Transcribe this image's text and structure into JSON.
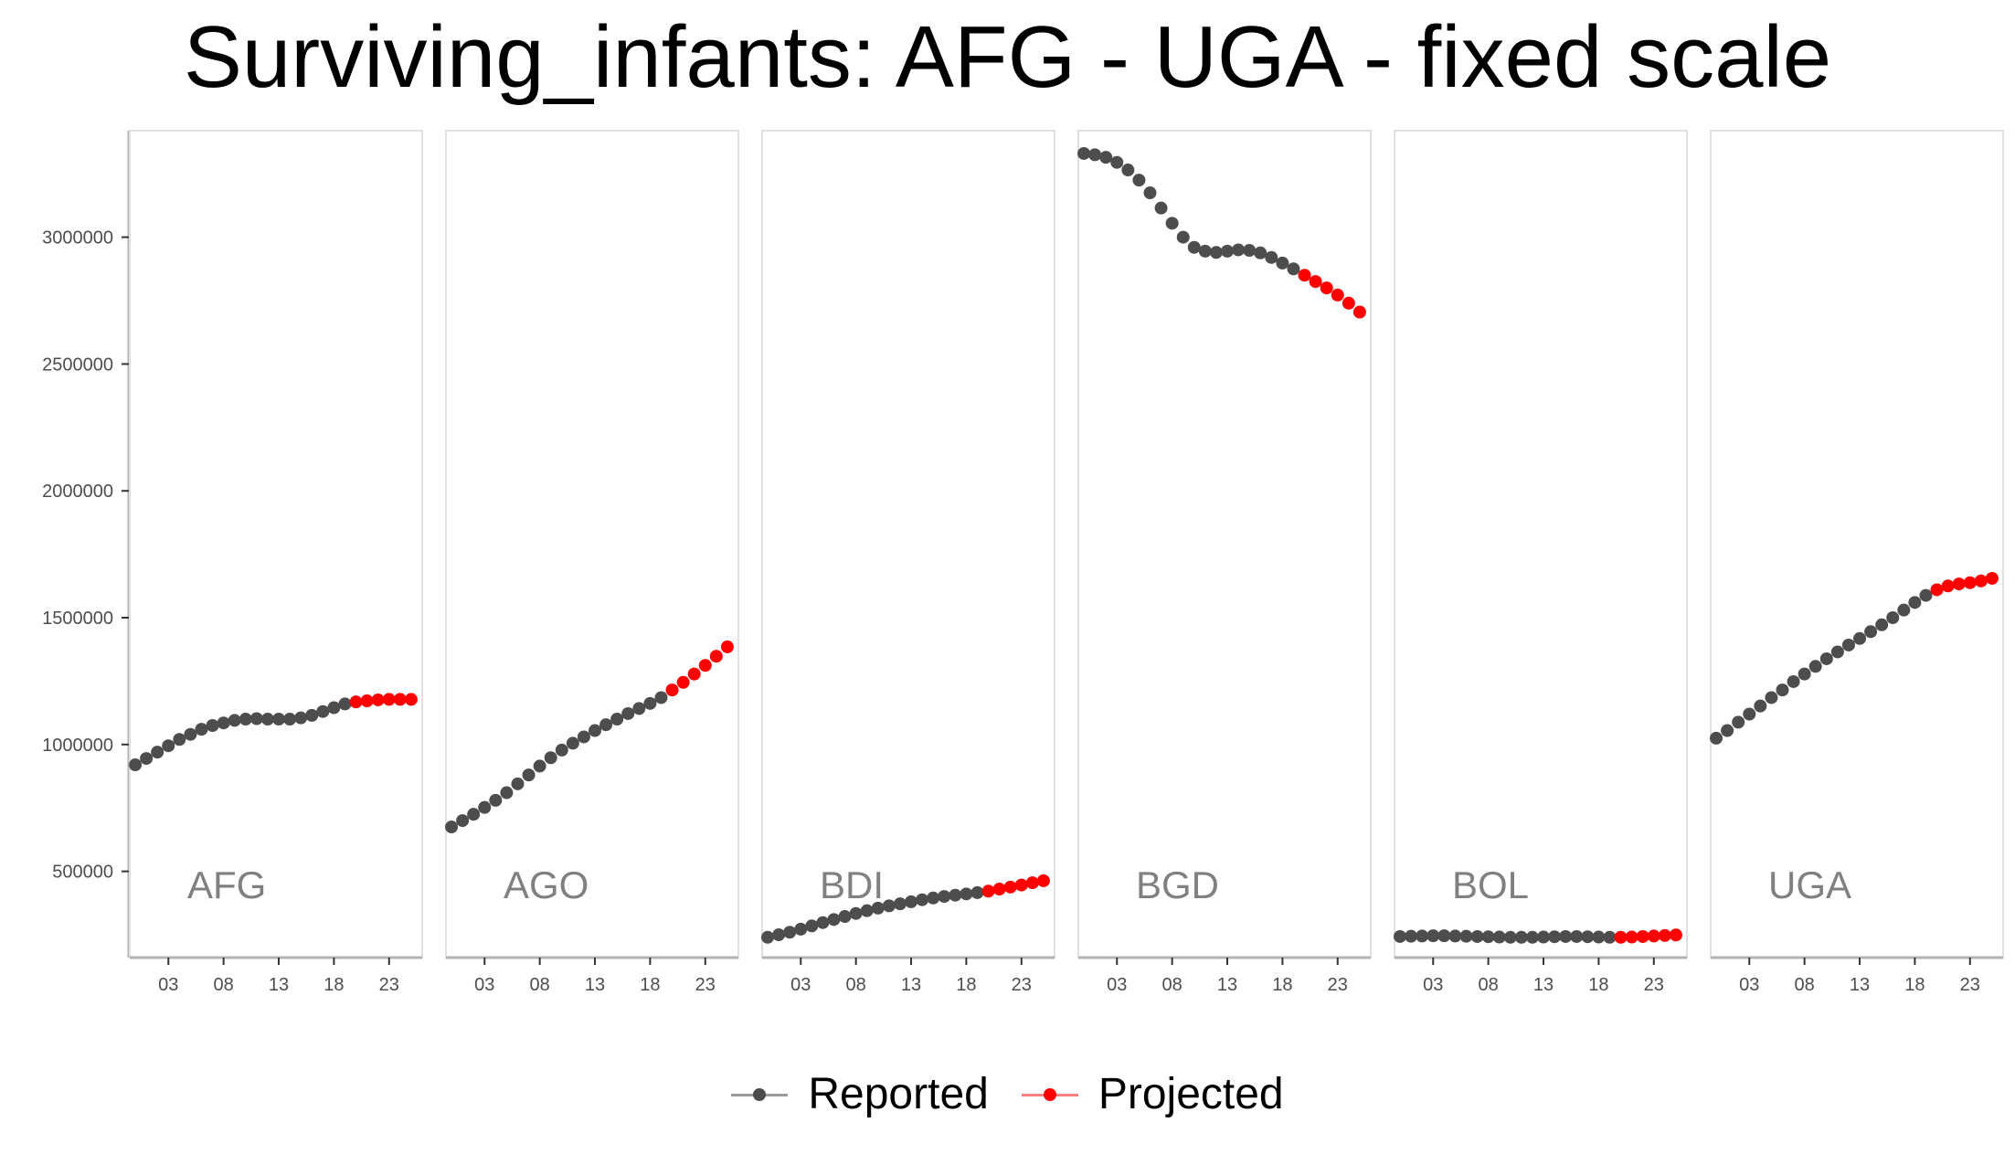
{
  "chart_data": {
    "type": "scatter",
    "title": "Surviving_infants: AFG - UGA - fixed scale",
    "xlabel": "",
    "ylabel": "",
    "ylim": [
      160000,
      3420000
    ],
    "xlim": [
      -0.5,
      26
    ],
    "y_ticks": [
      500000,
      1000000,
      1500000,
      2000000,
      2500000,
      3000000
    ],
    "y_tick_labels": [
      "500000",
      "1000000",
      "1500000",
      "2000000",
      "2500000",
      "3000000"
    ],
    "x_ticks": [
      3,
      8,
      13,
      18,
      23
    ],
    "x_tick_labels": [
      "03",
      "08",
      "13",
      "18",
      "23"
    ],
    "grid": false,
    "legend_position": "bottom",
    "legend": [
      {
        "label": "Reported",
        "color": "#4d4d4d"
      },
      {
        "label": "Projected",
        "color": "#ff0000"
      }
    ],
    "x": [
      0,
      1,
      2,
      3,
      4,
      5,
      6,
      7,
      8,
      9,
      10,
      11,
      12,
      13,
      14,
      15,
      16,
      17,
      18,
      19,
      20,
      21,
      22,
      23,
      24,
      25
    ],
    "projected_from_index": 20,
    "panels": [
      {
        "label": "AFG",
        "values": [
          920000,
          945000,
          970000,
          995000,
          1020000,
          1040000,
          1060000,
          1075000,
          1085000,
          1095000,
          1100000,
          1102000,
          1100000,
          1100000,
          1100000,
          1105000,
          1115000,
          1130000,
          1145000,
          1160000,
          1168000,
          1172000,
          1176000,
          1178000,
          1178000,
          1178000
        ]
      },
      {
        "label": "AGO",
        "values": [
          675000,
          700000,
          725000,
          752000,
          780000,
          810000,
          845000,
          880000,
          915000,
          948000,
          978000,
          1005000,
          1030000,
          1055000,
          1078000,
          1100000,
          1122000,
          1142000,
          1162000,
          1185000,
          1215000,
          1245000,
          1278000,
          1312000,
          1348000,
          1385000
        ]
      },
      {
        "label": "BDI",
        "values": [
          240000,
          250000,
          260000,
          272000,
          285000,
          298000,
          310000,
          322000,
          334000,
          345000,
          355000,
          364000,
          372000,
          380000,
          388000,
          395000,
          401000,
          406000,
          411000,
          416000,
          422000,
          430000,
          438000,
          446000,
          455000,
          463000
        ]
      },
      {
        "label": "BGD",
        "values": [
          3330000,
          3325000,
          3315000,
          3295000,
          3265000,
          3225000,
          3175000,
          3115000,
          3055000,
          3000000,
          2960000,
          2945000,
          2940000,
          2945000,
          2950000,
          2948000,
          2938000,
          2920000,
          2898000,
          2875000,
          2850000,
          2825000,
          2800000,
          2772000,
          2740000,
          2705000
        ]
      },
      {
        "label": "BOL",
        "values": [
          243000,
          244000,
          245000,
          246000,
          246000,
          245000,
          244000,
          243000,
          242000,
          241000,
          240000,
          240000,
          240000,
          241000,
          242000,
          243000,
          243000,
          242000,
          241000,
          240000,
          240000,
          241000,
          243000,
          245000,
          247000,
          249000
        ]
      },
      {
        "label": "UGA",
        "values": [
          1025000,
          1055000,
          1088000,
          1120000,
          1152000,
          1185000,
          1215000,
          1248000,
          1278000,
          1308000,
          1338000,
          1365000,
          1392000,
          1418000,
          1445000,
          1472000,
          1500000,
          1530000,
          1560000,
          1588000,
          1610000,
          1625000,
          1633000,
          1638000,
          1645000,
          1655000
        ]
      }
    ]
  }
}
